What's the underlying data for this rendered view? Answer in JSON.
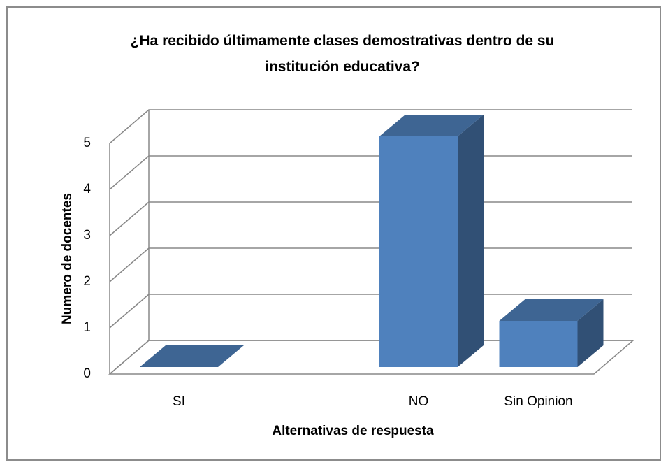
{
  "chart_data": {
    "type": "bar3d",
    "title": "¿Ha recibido últimamente clases demostrativas dentro de su institución educativa?",
    "categories": [
      "SI",
      null,
      "NO",
      "Sin Opinion"
    ],
    "values": [
      0,
      null,
      5,
      1
    ],
    "color": "#4f81bd",
    "ylim": [
      0,
      5
    ],
    "yticks": [
      0,
      1,
      2,
      3,
      4,
      5
    ],
    "grid": true,
    "x_label": "Alternativas de respuesta",
    "y_label": "Numero de docentes"
  }
}
